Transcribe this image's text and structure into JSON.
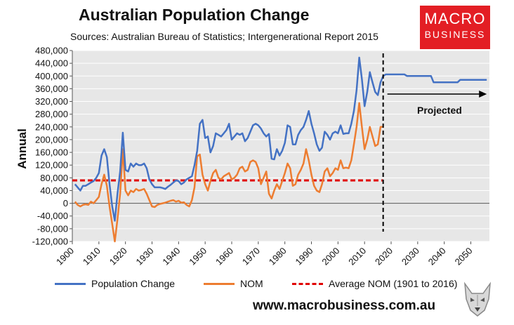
{
  "header": {
    "title": "Australian Population Change",
    "subtitle": "Sources: Australian Bureau of Statistics; Intergenerational Report 2015",
    "logo_line1": "MACRO",
    "logo_line2": "BUSINESS"
  },
  "footer": {
    "url": "www.macrobusiness.com.au"
  },
  "colors": {
    "population": "#4472c4",
    "nom": "#ed7d31",
    "average": "#e00000",
    "plot_bg": "#e7e7e7",
    "logo": "#e31e24"
  },
  "chart_data": {
    "type": "line",
    "ylabel": "Annual",
    "xlim": [
      1900,
      2057
    ],
    "ylim": [
      -120000,
      480000
    ],
    "x_ticks": [
      1900,
      1910,
      1920,
      1930,
      1940,
      1950,
      1960,
      1970,
      1980,
      1990,
      2000,
      2010,
      2020,
      2030,
      2040,
      2050
    ],
    "y_ticks": [
      -120000,
      -80000,
      -40000,
      0,
      40000,
      80000,
      120000,
      160000,
      200000,
      240000,
      280000,
      320000,
      360000,
      400000,
      440000,
      480000
    ],
    "y_tick_labels": [
      "-120,000",
      "-80,000",
      "-40,000",
      "0",
      "40,000",
      "80,000",
      "120,000",
      "160,000",
      "200,000",
      "240,000",
      "280,000",
      "320,000",
      "360,000",
      "400,000",
      "440,000",
      "480,000"
    ],
    "series": [
      {
        "name": "Population Change",
        "points": [
          [
            1901,
            60000
          ],
          [
            1902,
            50000
          ],
          [
            1903,
            40000
          ],
          [
            1904,
            55000
          ],
          [
            1905,
            55000
          ],
          [
            1906,
            60000
          ],
          [
            1907,
            65000
          ],
          [
            1908,
            70000
          ],
          [
            1909,
            80000
          ],
          [
            1910,
            95000
          ],
          [
            1911,
            150000
          ],
          [
            1912,
            170000
          ],
          [
            1913,
            145000
          ],
          [
            1914,
            60000
          ],
          [
            1915,
            -10000
          ],
          [
            1916,
            -55000
          ],
          [
            1917,
            30000
          ],
          [
            1918,
            100000
          ],
          [
            1919,
            222000
          ],
          [
            1920,
            105000
          ],
          [
            1921,
            100000
          ],
          [
            1922,
            125000
          ],
          [
            1923,
            115000
          ],
          [
            1924,
            125000
          ],
          [
            1925,
            120000
          ],
          [
            1926,
            120000
          ],
          [
            1927,
            125000
          ],
          [
            1928,
            110000
          ],
          [
            1929,
            75000
          ],
          [
            1930,
            60000
          ],
          [
            1931,
            50000
          ],
          [
            1932,
            50000
          ],
          [
            1933,
            50000
          ],
          [
            1934,
            48000
          ],
          [
            1935,
            45000
          ],
          [
            1936,
            52000
          ],
          [
            1937,
            58000
          ],
          [
            1938,
            65000
          ],
          [
            1939,
            72000
          ],
          [
            1940,
            70000
          ],
          [
            1941,
            60000
          ],
          [
            1942,
            65000
          ],
          [
            1943,
            75000
          ],
          [
            1944,
            80000
          ],
          [
            1945,
            85000
          ],
          [
            1946,
            120000
          ],
          [
            1947,
            165000
          ],
          [
            1948,
            250000
          ],
          [
            1949,
            262000
          ],
          [
            1950,
            205000
          ],
          [
            1951,
            210000
          ],
          [
            1952,
            160000
          ],
          [
            1953,
            180000
          ],
          [
            1954,
            220000
          ],
          [
            1955,
            215000
          ],
          [
            1956,
            210000
          ],
          [
            1957,
            220000
          ],
          [
            1958,
            230000
          ],
          [
            1959,
            250000
          ],
          [
            1960,
            200000
          ],
          [
            1961,
            210000
          ],
          [
            1962,
            220000
          ],
          [
            1963,
            215000
          ],
          [
            1964,
            220000
          ],
          [
            1965,
            195000
          ],
          [
            1966,
            205000
          ],
          [
            1967,
            225000
          ],
          [
            1968,
            245000
          ],
          [
            1969,
            250000
          ],
          [
            1970,
            245000
          ],
          [
            1971,
            235000
          ],
          [
            1972,
            220000
          ],
          [
            1973,
            210000
          ],
          [
            1974,
            218000
          ],
          [
            1975,
            140000
          ],
          [
            1976,
            138000
          ],
          [
            1977,
            170000
          ],
          [
            1978,
            150000
          ],
          [
            1979,
            165000
          ],
          [
            1980,
            190000
          ],
          [
            1981,
            245000
          ],
          [
            1982,
            240000
          ],
          [
            1983,
            185000
          ],
          [
            1984,
            185000
          ],
          [
            1985,
            215000
          ],
          [
            1986,
            230000
          ],
          [
            1987,
            240000
          ],
          [
            1988,
            262000
          ],
          [
            1989,
            290000
          ],
          [
            1990,
            250000
          ],
          [
            1991,
            220000
          ],
          [
            1992,
            185000
          ],
          [
            1993,
            165000
          ],
          [
            1994,
            175000
          ],
          [
            1995,
            225000
          ],
          [
            1996,
            215000
          ],
          [
            1997,
            200000
          ],
          [
            1998,
            220000
          ],
          [
            1999,
            225000
          ],
          [
            2000,
            220000
          ],
          [
            2001,
            245000
          ],
          [
            2002,
            218000
          ],
          [
            2003,
            220000
          ],
          [
            2004,
            220000
          ],
          [
            2005,
            250000
          ],
          [
            2006,
            290000
          ],
          [
            2007,
            355000
          ],
          [
            2008,
            458000
          ],
          [
            2009,
            390000
          ],
          [
            2010,
            305000
          ],
          [
            2011,
            350000
          ],
          [
            2012,
            412000
          ],
          [
            2013,
            380000
          ],
          [
            2014,
            350000
          ],
          [
            2015,
            340000
          ],
          [
            2016,
            380000
          ],
          [
            2017,
            400000
          ],
          [
            2018,
            405000
          ],
          [
            2020,
            405000
          ],
          [
            2025,
            405000
          ],
          [
            2026,
            400000
          ],
          [
            2035,
            400000
          ],
          [
            2036,
            380000
          ],
          [
            2045,
            380000
          ],
          [
            2046,
            388000
          ],
          [
            2056,
            388000
          ]
        ]
      },
      {
        "name": "NOM",
        "points": [
          [
            1901,
            5000
          ],
          [
            1902,
            -5000
          ],
          [
            1903,
            -10000
          ],
          [
            1904,
            -5000
          ],
          [
            1905,
            -3000
          ],
          [
            1906,
            -5000
          ],
          [
            1907,
            5000
          ],
          [
            1908,
            0
          ],
          [
            1909,
            10000
          ],
          [
            1910,
            20000
          ],
          [
            1911,
            60000
          ],
          [
            1912,
            90000
          ],
          [
            1913,
            55000
          ],
          [
            1914,
            -10000
          ],
          [
            1915,
            -65000
          ],
          [
            1916,
            -120000
          ],
          [
            1917,
            -50000
          ],
          [
            1918,
            30000
          ],
          [
            1919,
            170000
          ],
          [
            1920,
            40000
          ],
          [
            1921,
            25000
          ],
          [
            1922,
            40000
          ],
          [
            1923,
            35000
          ],
          [
            1924,
            45000
          ],
          [
            1925,
            40000
          ],
          [
            1926,
            42000
          ],
          [
            1927,
            45000
          ],
          [
            1928,
            30000
          ],
          [
            1929,
            10000
          ],
          [
            1930,
            -10000
          ],
          [
            1931,
            -12000
          ],
          [
            1932,
            -5000
          ],
          [
            1933,
            -2000
          ],
          [
            1934,
            0
          ],
          [
            1935,
            2000
          ],
          [
            1936,
            5000
          ],
          [
            1937,
            8000
          ],
          [
            1938,
            10000
          ],
          [
            1939,
            5000
          ],
          [
            1940,
            8000
          ],
          [
            1941,
            2000
          ],
          [
            1942,
            3000
          ],
          [
            1943,
            -5000
          ],
          [
            1944,
            -10000
          ],
          [
            1945,
            10000
          ],
          [
            1946,
            50000
          ],
          [
            1947,
            148000
          ],
          [
            1948,
            153000
          ],
          [
            1949,
            90000
          ],
          [
            1950,
            60000
          ],
          [
            1951,
            40000
          ],
          [
            1952,
            70000
          ],
          [
            1953,
            95000
          ],
          [
            1954,
            105000
          ],
          [
            1955,
            80000
          ],
          [
            1956,
            75000
          ],
          [
            1957,
            85000
          ],
          [
            1958,
            90000
          ],
          [
            1959,
            95000
          ],
          [
            1960,
            75000
          ],
          [
            1961,
            80000
          ],
          [
            1962,
            90000
          ],
          [
            1963,
            110000
          ],
          [
            1964,
            115000
          ],
          [
            1965,
            100000
          ],
          [
            1966,
            105000
          ],
          [
            1967,
            130000
          ],
          [
            1968,
            135000
          ],
          [
            1969,
            130000
          ],
          [
            1970,
            110000
          ],
          [
            1971,
            60000
          ],
          [
            1972,
            80000
          ],
          [
            1973,
            100000
          ],
          [
            1974,
            30000
          ],
          [
            1975,
            15000
          ],
          [
            1976,
            40000
          ],
          [
            1977,
            60000
          ],
          [
            1978,
            45000
          ],
          [
            1979,
            70000
          ],
          [
            1980,
            95000
          ],
          [
            1981,
            125000
          ],
          [
            1982,
            110000
          ],
          [
            1983,
            55000
          ],
          [
            1984,
            60000
          ],
          [
            1985,
            90000
          ],
          [
            1986,
            105000
          ],
          [
            1987,
            125000
          ],
          [
            1988,
            170000
          ],
          [
            1989,
            135000
          ],
          [
            1990,
            90000
          ],
          [
            1991,
            55000
          ],
          [
            1992,
            40000
          ],
          [
            1993,
            35000
          ],
          [
            1994,
            60000
          ],
          [
            1995,
            100000
          ],
          [
            1996,
            110000
          ],
          [
            1997,
            85000
          ],
          [
            1998,
            95000
          ],
          [
            1999,
            110000
          ],
          [
            2000,
            105000
          ],
          [
            2001,
            135000
          ],
          [
            2002,
            110000
          ],
          [
            2003,
            112000
          ],
          [
            2004,
            110000
          ],
          [
            2005,
            135000
          ],
          [
            2006,
            185000
          ],
          [
            2007,
            240000
          ],
          [
            2008,
            315000
          ],
          [
            2009,
            240000
          ],
          [
            2010,
            170000
          ],
          [
            2011,
            200000
          ],
          [
            2012,
            240000
          ],
          [
            2013,
            210000
          ],
          [
            2014,
            180000
          ],
          [
            2015,
            185000
          ],
          [
            2016,
            240000
          ],
          [
            2017,
            240000
          ]
        ]
      },
      {
        "name": "Average NOM (1901 to 2016)",
        "value": 72000,
        "x": [
          1900,
          2017
        ]
      }
    ],
    "projection_marker": {
      "x": 2017,
      "label": "Projected",
      "arrow_to": 2056
    },
    "legend": [
      "Population Change",
      "NOM",
      "Average NOM (1901 to 2016)"
    ]
  }
}
